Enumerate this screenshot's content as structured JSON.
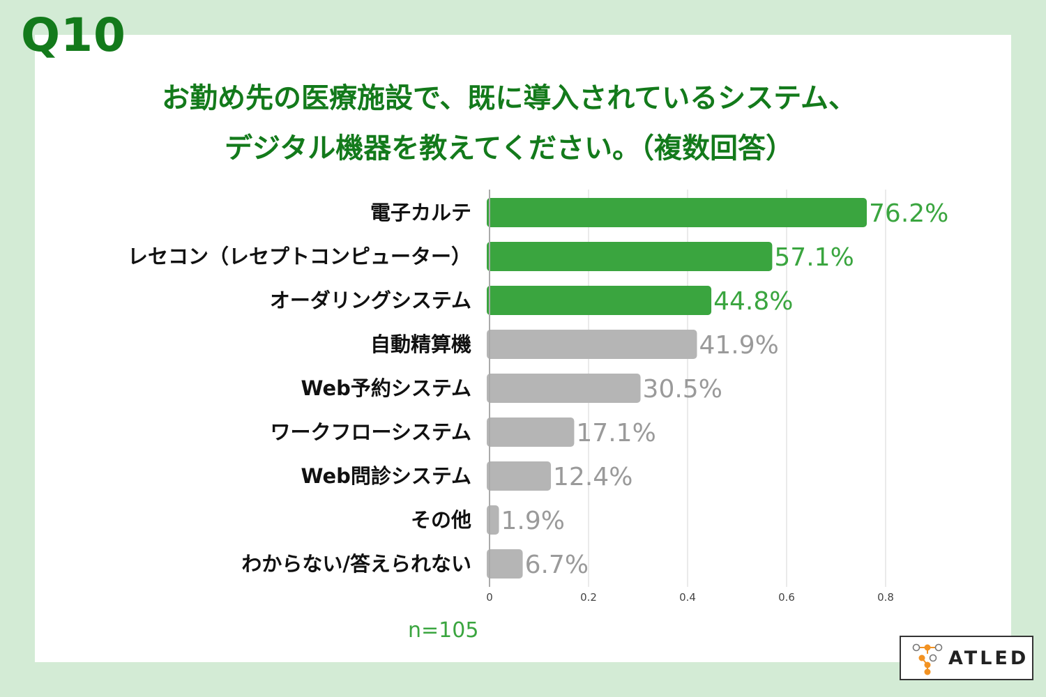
{
  "question_number": "Q10",
  "title_line1": "お勤め先の医療施設で、既に導入されているシステム、",
  "title_line2": "デジタル機器を教えてください。（複数回答）",
  "sample_size": "n=105",
  "logo_text": "ATLED",
  "colors": {
    "background": "#d3ebd5",
    "title": "#137a1b",
    "highlight_bar": "#3aa53f",
    "other_bar": "#b5b5b5",
    "highlight_value": "#3aa53f",
    "other_value": "#9a9a9a",
    "logo_orange": "#f29222"
  },
  "chart_data": {
    "type": "bar",
    "orientation": "horizontal",
    "categories": [
      "電子カルテ",
      "レセコン（レセプトコンピューター）",
      "オーダリングシステム",
      "自動精算機",
      "Web予約システム",
      "ワークフローシステム",
      "Web問診システム",
      "その他",
      "わからない/答えられない"
    ],
    "values": [
      0.762,
      0.571,
      0.448,
      0.419,
      0.305,
      0.171,
      0.124,
      0.019,
      0.067
    ],
    "value_labels": [
      "76.2%",
      "57.1%",
      "44.8%",
      "41.9%",
      "30.5%",
      "17.1%",
      "12.4%",
      "1.9%",
      "6.7%"
    ],
    "highlighted": [
      true,
      true,
      true,
      false,
      false,
      false,
      false,
      false,
      false
    ],
    "xlim": [
      0,
      0.8
    ],
    "xticks": [
      "0",
      "0.2",
      "0.4",
      "0.6",
      "0.8"
    ],
    "grid": true
  }
}
